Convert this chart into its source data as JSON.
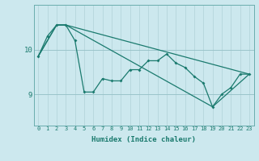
{
  "xlabel": "Humidex (Indice chaleur)",
  "bg_color": "#cce8ee",
  "line_color": "#1a7a6e",
  "grid_color_v": "#b8d8de",
  "grid_color_h": "#9ac4ca",
  "xlim": [
    -0.5,
    23.5
  ],
  "ylim": [
    8.3,
    11.0
  ],
  "yticks": [
    9,
    10
  ],
  "xticks": [
    0,
    1,
    2,
    3,
    4,
    5,
    6,
    7,
    8,
    9,
    10,
    11,
    12,
    13,
    14,
    15,
    16,
    17,
    18,
    19,
    20,
    21,
    22,
    23
  ],
  "line1_x": [
    0,
    1,
    2,
    3,
    4,
    5,
    6,
    7,
    8,
    9,
    10,
    11,
    12,
    13,
    14,
    15,
    16,
    17,
    18,
    19,
    20,
    21,
    22,
    23
  ],
  "line1_y": [
    9.85,
    10.3,
    10.55,
    10.55,
    10.2,
    9.05,
    9.05,
    9.35,
    9.3,
    9.3,
    9.55,
    9.55,
    9.75,
    9.75,
    9.9,
    9.7,
    9.6,
    9.4,
    9.25,
    8.72,
    9.0,
    9.15,
    9.45,
    9.45
  ],
  "line2_x": [
    0,
    2,
    3,
    23
  ],
  "line2_y": [
    9.85,
    10.55,
    10.55,
    9.45
  ],
  "line3_x": [
    0,
    2,
    3,
    19,
    23
  ],
  "line3_y": [
    9.85,
    10.55,
    10.55,
    8.72,
    9.45
  ]
}
